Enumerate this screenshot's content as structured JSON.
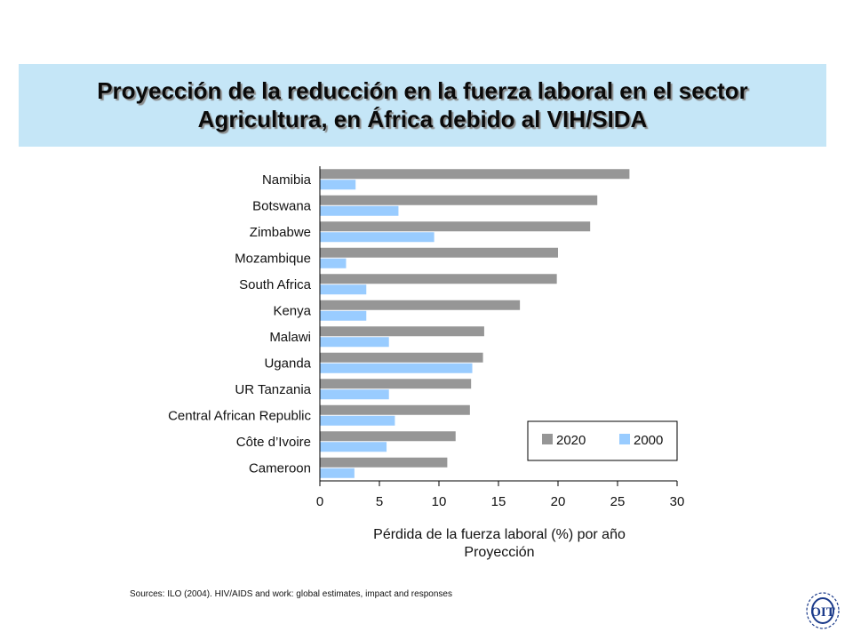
{
  "title": {
    "line1": "Proyección de la reducción en la fuerza laboral en el sector",
    "line2": "Agricultura, en África debido al VIH/SIDA"
  },
  "chart_data": {
    "type": "bar",
    "orientation": "horizontal",
    "categories": [
      "Namibia",
      "Botswana",
      "Zimbabwe",
      "Mozambique",
      "South Africa",
      "Kenya",
      "Malawi",
      "Uganda",
      "UR Tanzania",
      "Central African Republic",
      "Côte d’Ivoire",
      "Cameroon"
    ],
    "series": [
      {
        "name": "2020",
        "color": "#969696",
        "values": [
          26.0,
          23.3,
          22.7,
          20.0,
          19.9,
          16.8,
          13.8,
          13.7,
          12.7,
          12.6,
          11.4,
          10.7
        ]
      },
      {
        "name": "2000",
        "color": "#99ccff",
        "values": [
          3.0,
          6.6,
          9.6,
          2.2,
          3.9,
          3.9,
          5.8,
          12.8,
          5.8,
          6.3,
          5.6,
          2.9
        ]
      }
    ],
    "xlim": [
      0,
      30
    ],
    "xticks": [
      0,
      5,
      10,
      15,
      20,
      25,
      30
    ],
    "xlabel": "Pérdida de la fuerza laboral (%) por año",
    "xlabel2": "Proyección",
    "legend_position": "bottom-right",
    "grid": false
  },
  "source": "Sources:  ILO (2004). HIV/AIDS and work: global estimates, impact and responses",
  "logo": {
    "text": "OIT"
  }
}
